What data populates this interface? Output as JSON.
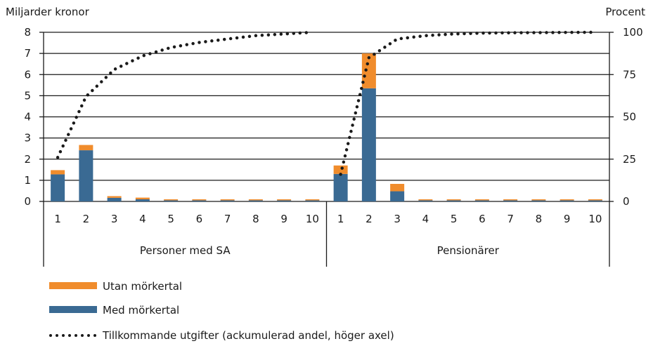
{
  "chart_data": {
    "type": "bar",
    "stacked": true,
    "left_axis_title": "Miljarder kronor",
    "right_axis_title": "Procent",
    "left_ylim": [
      0,
      8
    ],
    "left_ticks": [
      "0",
      "1",
      "2",
      "3",
      "4",
      "5",
      "6",
      "7",
      "8"
    ],
    "right_ylim": [
      0,
      100
    ],
    "right_ticks": [
      "0",
      "25",
      "50",
      "75",
      "100"
    ],
    "grid": true,
    "categories": [
      "1",
      "2",
      "3",
      "4",
      "5",
      "6",
      "7",
      "8",
      "9",
      "10"
    ],
    "groups": [
      {
        "name": "Personer med SA",
        "med_morkertal": [
          1.28,
          2.42,
          0.17,
          0.1,
          0.05,
          0.05,
          0.05,
          0.05,
          0.05,
          0.05
        ],
        "utan_morkertal": [
          0.2,
          0.25,
          0.08,
          0.08,
          0.05,
          0.05,
          0.05,
          0.05,
          0.05,
          0.05
        ],
        "cumulative_share": [
          26,
          62,
          78,
          86,
          91,
          94,
          96,
          98,
          99,
          100
        ]
      },
      {
        "name": "Pensionärer",
        "med_morkertal": [
          1.3,
          5.35,
          0.48,
          0.05,
          0.05,
          0.05,
          0.05,
          0.05,
          0.05,
          0.05
        ],
        "utan_morkertal": [
          0.4,
          1.65,
          0.35,
          0.05,
          0.05,
          0.05,
          0.05,
          0.05,
          0.05,
          0.05
        ],
        "cumulative_share": [
          16,
          85,
          96,
          98,
          99,
          99.5,
          99.7,
          99.8,
          99.9,
          100
        ]
      }
    ],
    "series": [
      {
        "name": "Utan mörkertal",
        "color": "#f08c2c"
      },
      {
        "name": "Med mörkertal",
        "color": "#3a6a93"
      },
      {
        "name": "Tillkommande utgifter (ackumulerad andel, höger axel)",
        "color": "#1a1a1a",
        "style": "dotted"
      }
    ],
    "legend_position": "bottom-left"
  }
}
